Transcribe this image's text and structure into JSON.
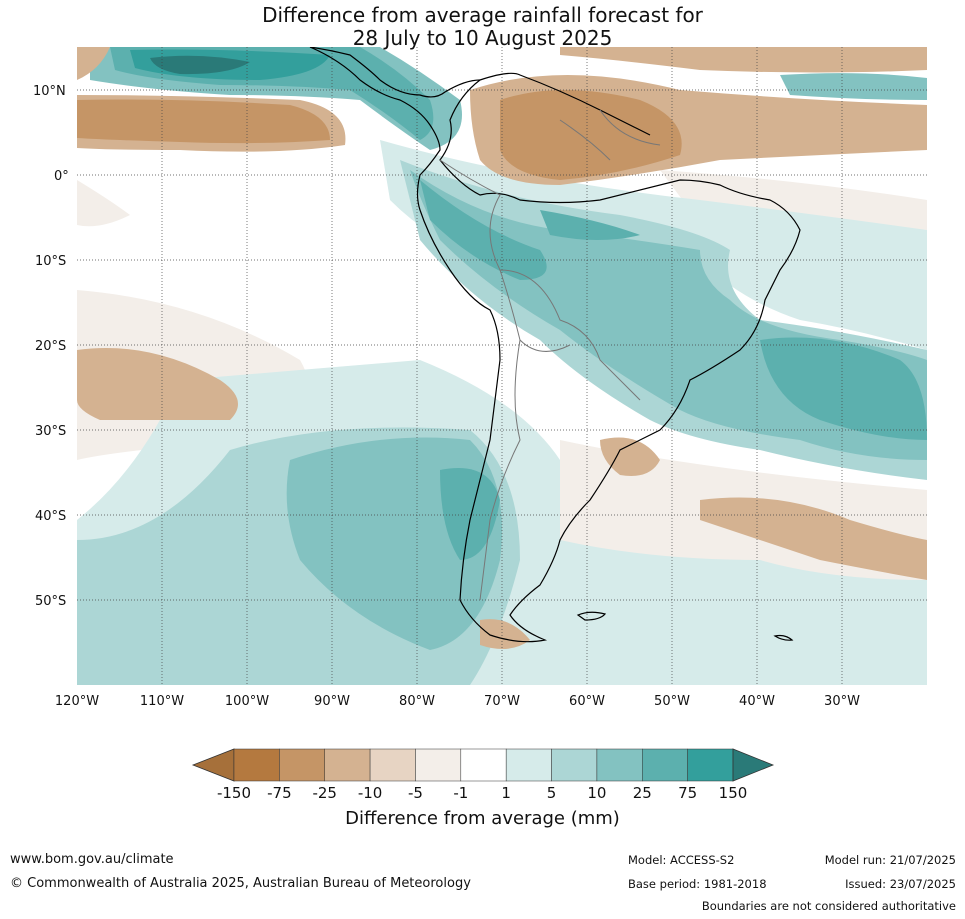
{
  "title": {
    "line1": "Difference from average rainfall forecast for",
    "line2": "28 July to 10 August 2025"
  },
  "map": {
    "lat_labels": [
      "10°N",
      "0°",
      "10°S",
      "20°S",
      "30°S",
      "40°S",
      "50°S"
    ],
    "lon_labels": [
      "120°W",
      "110°W",
      "100°W",
      "90°W",
      "80°W",
      "70°W",
      "60°W",
      "50°W",
      "40°W",
      "30°W"
    ]
  },
  "colorbar": {
    "ticks": [
      "-150",
      "-75",
      "-25",
      "-10",
      "-5",
      "-1",
      "1",
      "5",
      "10",
      "25",
      "75",
      "150"
    ],
    "colors": [
      "#a6703a",
      "#b4793f",
      "#c59566",
      "#d4b291",
      "#e7d4c3",
      "#f3eee9",
      "#ffffff",
      "#d6ebea",
      "#acd6d5",
      "#83c2c1",
      "#5cb0ae",
      "#339f9c",
      "#2a7a78"
    ],
    "label": "Difference from average (mm)"
  },
  "footer": {
    "website": "www.bom.gov.au/climate",
    "copyright": "© Commonwealth of Australia 2025, Australian Bureau of Meteorology",
    "model": "Model: ACCESS-S2",
    "base_period": "Base period: 1981-2018",
    "model_run": "Model run: 21/07/2025",
    "issued": "Issued: 23/07/2025",
    "disclaimer": "Boundaries are not considered authoritative"
  }
}
